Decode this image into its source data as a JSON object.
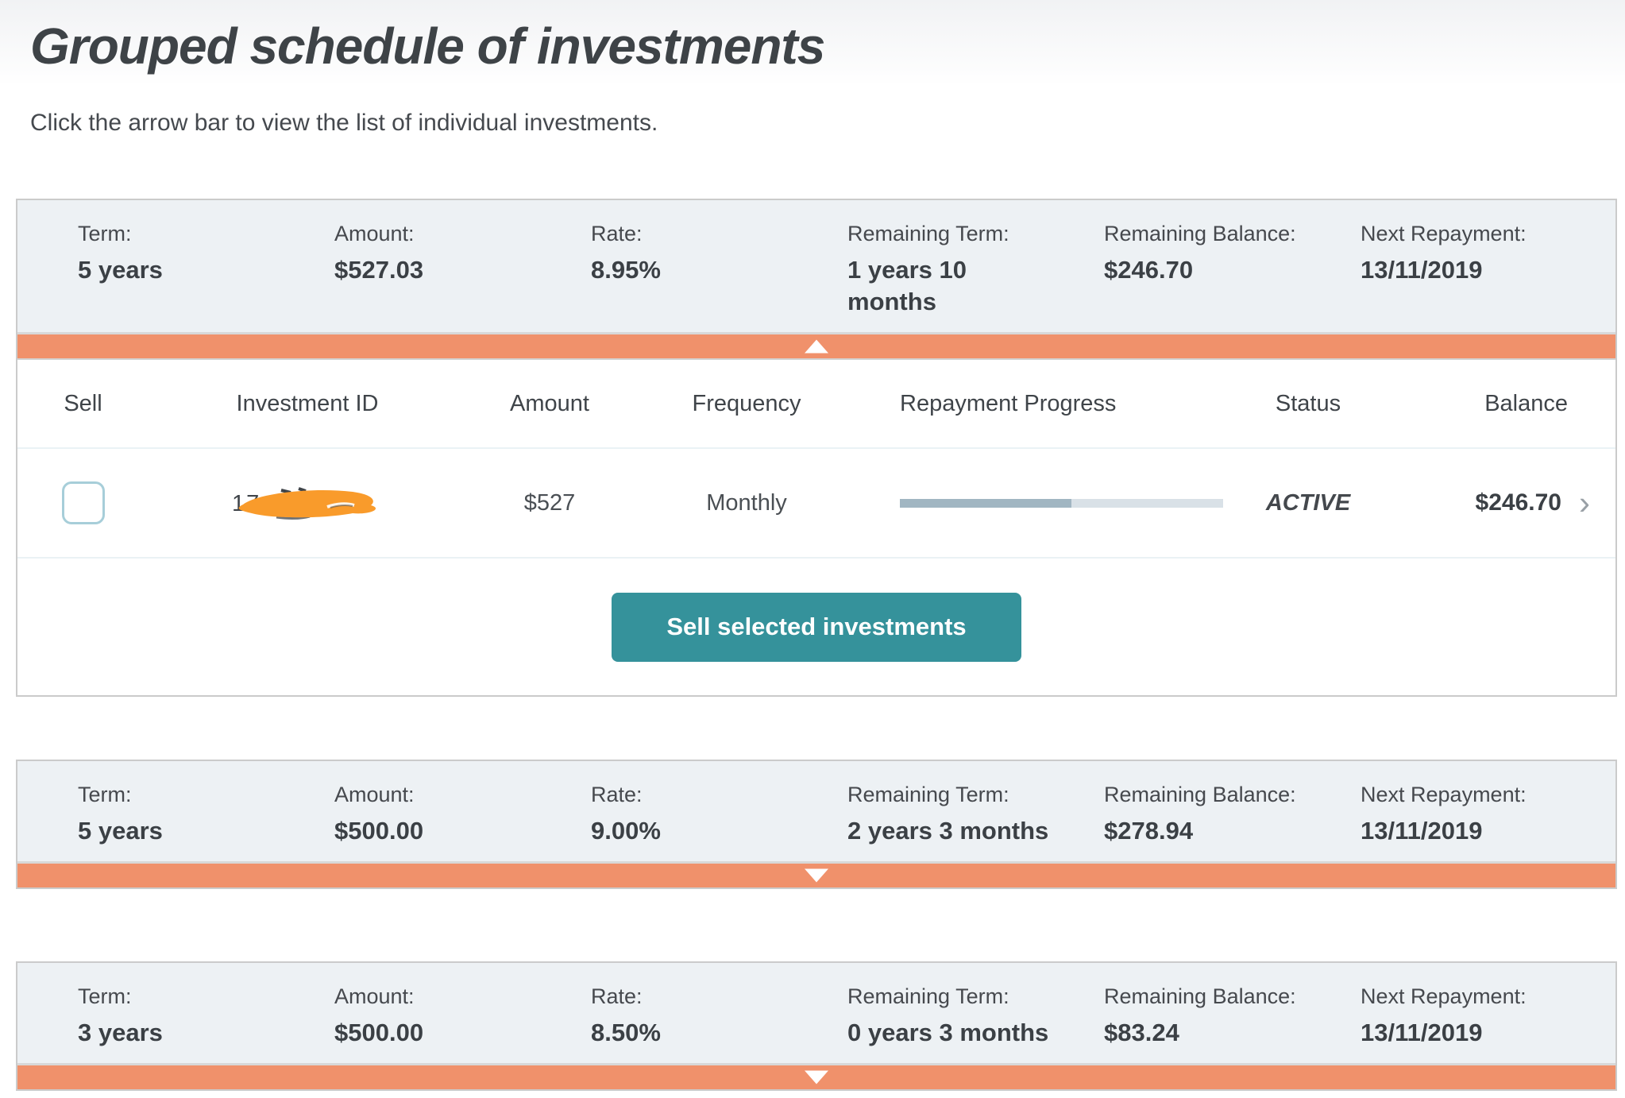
{
  "page": {
    "title": "Grouped schedule of investments",
    "subtitle": "Click the arrow bar to view the list of individual investments."
  },
  "labels": {
    "term": "Term:",
    "amount": "Amount:",
    "rate": "Rate:",
    "remaining_term": "Remaining Term:",
    "remaining_balance": "Remaining Balance:",
    "next_repayment": "Next Repayment:"
  },
  "groups": [
    {
      "term": "5 years",
      "amount": "$527.03",
      "rate": "8.95%",
      "remaining_term": "1 years 10\nmonths",
      "remaining_balance": "$246.70",
      "next_repayment": "13/11/2019",
      "expanded": true
    },
    {
      "term": "5 years",
      "amount": "$500.00",
      "rate": "9.00%",
      "remaining_term": "2 years 3 months",
      "remaining_balance": "$278.94",
      "next_repayment": "13/11/2019",
      "expanded": false
    },
    {
      "term": "3 years",
      "amount": "$500.00",
      "rate": "8.50%",
      "remaining_term": "0 years 3 months",
      "remaining_balance": "$83.24",
      "next_repayment": "13/11/2019",
      "expanded": false
    }
  ],
  "table": {
    "headers": {
      "sell": "Sell",
      "investment_id": "Investment ID",
      "amount": "Amount",
      "frequency": "Frequency",
      "repayment_progress": "Repayment Progress",
      "status": "Status",
      "balance": "Balance"
    },
    "rows": [
      {
        "investment_id_visible_fragment": "17",
        "investment_id_redacted": true,
        "amount": "$527",
        "frequency": "Monthly",
        "progress_percent": 53,
        "status": "ACTIVE",
        "balance": "$246.70"
      }
    ],
    "sell_button_label": "Sell selected investments"
  },
  "icons": {
    "chevron_right": "›"
  },
  "colors": {
    "accent_orange": "#f0916b",
    "button_teal": "#35929b",
    "progress_fill": "#a1b6c2",
    "progress_track": "#d9e1e7",
    "checkbox_border": "#a7ced9",
    "redaction_orange": "#f99b2b",
    "group_header_bg": "#edf1f4"
  }
}
